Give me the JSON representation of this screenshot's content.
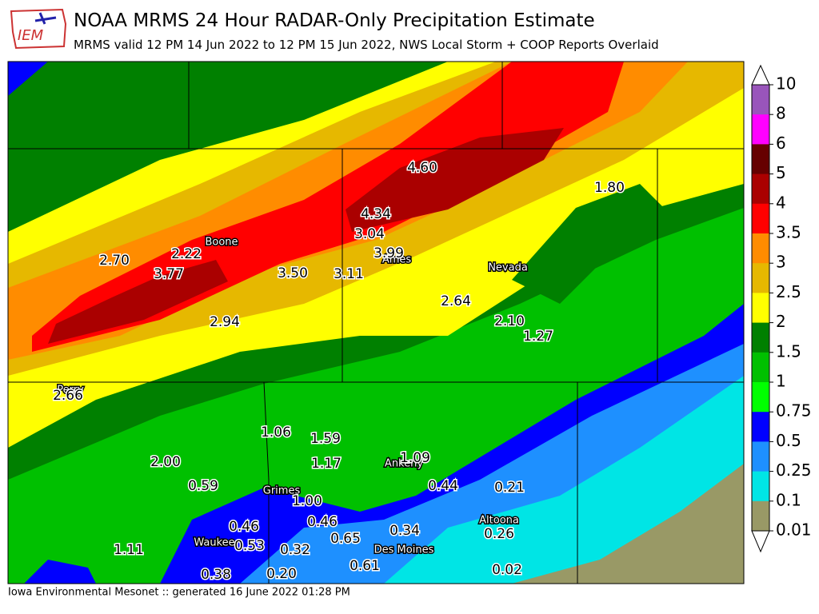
{
  "header": {
    "logo": "IEM",
    "title": "NOAA MRMS 24 Hour RADAR-Only Precipitation Estimate",
    "subtitle": "MRMS valid 12 PM 14 Jun 2022 to 12 PM 15 Jun 2022, NWS Local Storm + COOP Reports Overlaid"
  },
  "footer": "Iowa Environmental Mesonet :: generated 16 June 2022 01:28 PM",
  "colorbar": {
    "labels": [
      "10",
      "8",
      "6",
      "5",
      "4",
      "3.5",
      "3",
      "2.5",
      "2",
      "1.5",
      "1",
      "0.75",
      "0.5",
      "0.25",
      "0.1",
      "0.01"
    ]
  },
  "cities": [
    "Boone",
    "Ames",
    "Nevada",
    "Perry",
    "Ankeny",
    "Grimes",
    "Waukee",
    "Des Moines",
    "Altoona"
  ],
  "reports": [
    "4.60",
    "1.80",
    "4.34",
    "3.04",
    "3.99",
    "2.70",
    "2.22",
    "3.77",
    "3.50",
    "3.11",
    "2.64",
    "2.94",
    "2.10",
    "1.27",
    "2.66",
    "1.06",
    "1.59",
    "1.17",
    "2.00",
    "1.09",
    "0.59",
    "0.44",
    "0.21",
    "1.00",
    "0.46",
    "0.46",
    "0.34",
    "0.26",
    "0.53",
    "0.32",
    "0.65",
    "1.11",
    "0.61",
    "0.38",
    "0.20",
    "0.02"
  ]
}
